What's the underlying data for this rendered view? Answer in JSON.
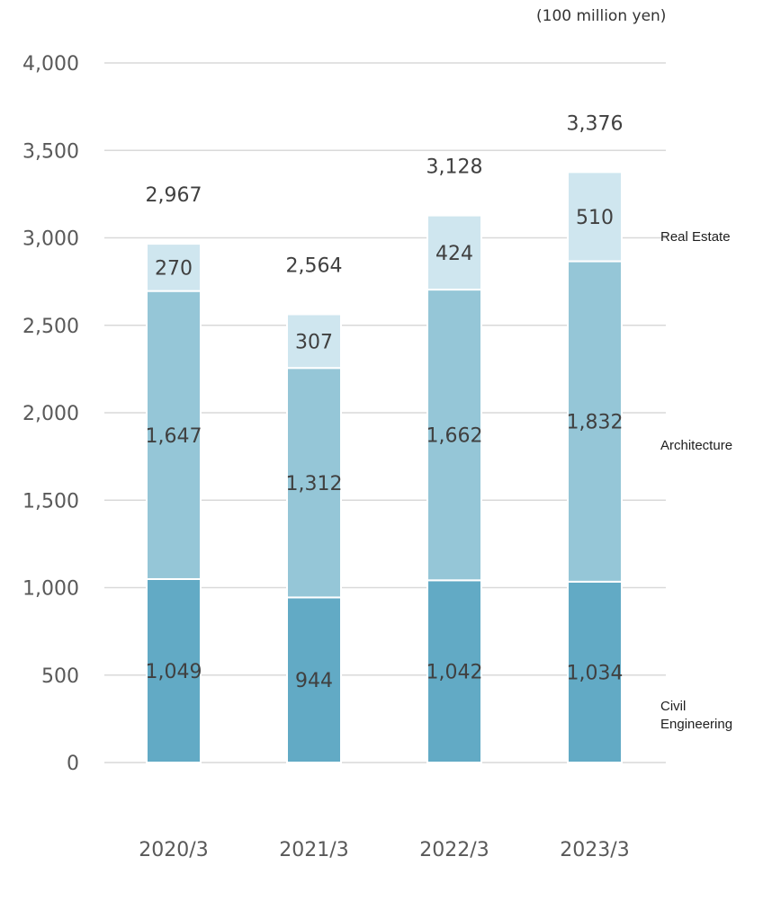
{
  "chart_data": {
    "type": "bar",
    "stacked": true,
    "unit": "(100 million yen)",
    "categories": [
      "2020/3",
      "2021/3",
      "2022/3",
      "2023/3"
    ],
    "series": [
      {
        "name": "Civil Engineering",
        "label_lines": [
          "Civil",
          "Engineering"
        ],
        "values": [
          1049,
          944,
          1042,
          1034
        ],
        "value_labels": [
          "1,049",
          "944",
          "1,042",
          "1,034"
        ],
        "color": "#62aac5"
      },
      {
        "name": "Architecture",
        "label_lines": [
          "Architecture"
        ],
        "values": [
          1647,
          1312,
          1662,
          1832
        ],
        "value_labels": [
          "1,647",
          "1,312",
          "1,662",
          "1,832"
        ],
        "color": "#95c6d7"
      },
      {
        "name": "Real Estate",
        "label_lines": [
          "Real Estate"
        ],
        "values": [
          270,
          307,
          424,
          510
        ],
        "value_labels": [
          "270",
          "307",
          "424",
          "510"
        ],
        "color": "#cfe6ef"
      }
    ],
    "totals": [
      2967,
      2564,
      3128,
      3376
    ],
    "total_labels": [
      "2,967",
      "2,564",
      "3,128",
      "3,376"
    ],
    "yticks": [
      "0",
      "500",
      "1,000",
      "1,500",
      "2,000",
      "2,500",
      "3,000",
      "3,500",
      "4,000"
    ],
    "ytick_values": [
      0,
      500,
      1000,
      1500,
      2000,
      2500,
      3000,
      3500,
      4000
    ],
    "ylim": [
      0,
      4000
    ],
    "grid": true,
    "legend_placement": "right"
  }
}
